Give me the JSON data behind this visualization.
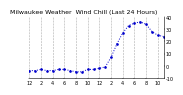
{
  "title": "Milwaukee Weather  Wind Chill (Last 24 Hours)",
  "line_color": "#0000cc",
  "bg_color": "#ffffff",
  "grid_color": "#888888",
  "x_values": [
    0,
    1,
    2,
    3,
    4,
    5,
    6,
    7,
    8,
    9,
    10,
    11,
    12,
    13,
    14,
    15,
    16,
    17,
    18,
    19,
    20,
    21,
    22,
    23
  ],
  "y_values": [
    -4,
    -4,
    -3,
    -4,
    -4,
    -3,
    -3,
    -4,
    -5,
    -5,
    -3,
    -3,
    -2,
    -1,
    7,
    18,
    27,
    33,
    35,
    36,
    34,
    28,
    25,
    24
  ],
  "ylim": [
    -10,
    40
  ],
  "xlim": [
    0,
    23
  ],
  "yticks": [
    -10,
    0,
    10,
    20,
    30,
    40
  ],
  "ytick_labels": [
    "-10",
    "0",
    "10",
    "20",
    "30",
    "40"
  ],
  "xtick_positions": [
    0,
    2,
    4,
    6,
    8,
    10,
    12,
    14,
    16,
    18,
    20,
    22
  ],
  "xtick_labels": [
    "12",
    "2",
    "4",
    "6",
    "8",
    "10",
    "12",
    "2",
    "4",
    "6",
    "8",
    "10"
  ],
  "title_fontsize": 4.5,
  "tick_fontsize": 3.5,
  "marker_size": 1.8,
  "line_width": 0.7
}
